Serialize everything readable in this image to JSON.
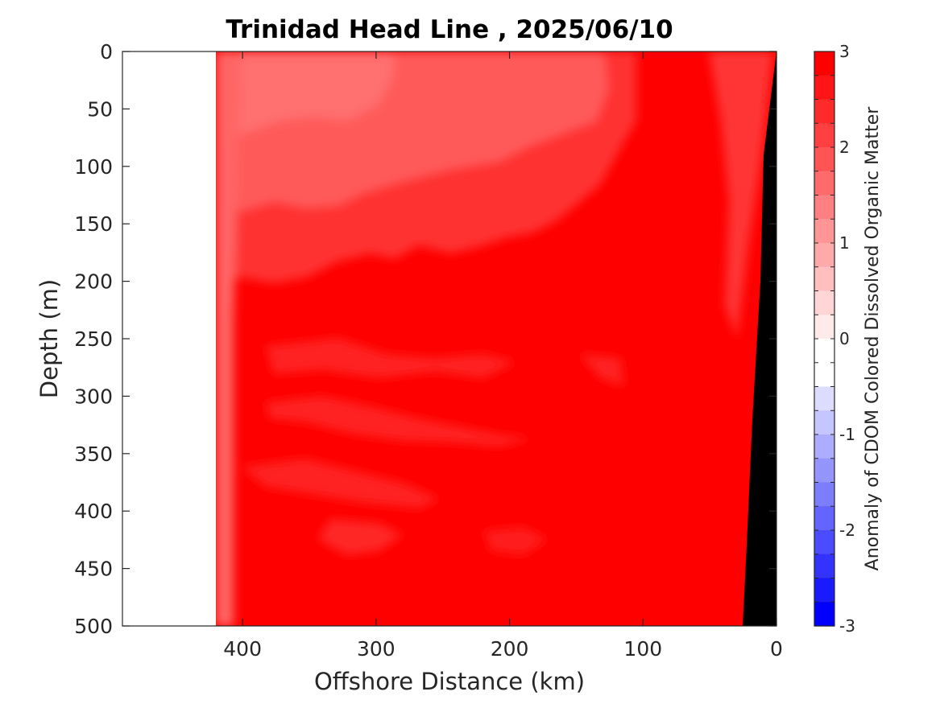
{
  "chart_data": {
    "type": "heatmap",
    "title": "Trinidad Head Line , 2025/06/10",
    "xlabel": "Offshore Distance (km)",
    "ylabel": "Depth (m)",
    "xlim": [
      490,
      0
    ],
    "ylim": [
      0,
      500
    ],
    "x_reversed": true,
    "y_reversed": true,
    "x_ticks": [
      400,
      300,
      200,
      100,
      0
    ],
    "y_ticks": [
      0,
      50,
      100,
      150,
      200,
      250,
      300,
      350,
      400,
      450,
      500
    ],
    "grid": false,
    "data_extent_km": [
      420,
      0
    ],
    "bathymetry_color": "#000000",
    "bathymetry_depth_by_distance_km": [
      {
        "x": 0,
        "depth": 0
      },
      {
        "x": 10,
        "depth": 90
      },
      {
        "x": 13,
        "depth": 200
      },
      {
        "x": 20,
        "depth": 320
      },
      {
        "x": 25,
        "depth": 430
      },
      {
        "x": 26,
        "depth": 500
      }
    ],
    "field_description": "CDOM anomaly mostly 2.5 to 3 (bright red) at depth and nearshore; 1.5 to 2.2 (lighter red) in upper 150 m offshore",
    "colorbar": {
      "label": "Anomaly of CDOM Colored Dissolved Organic Matter",
      "min": -3,
      "max": 3,
      "ticks": [
        3,
        2,
        1,
        0,
        -1,
        -2,
        -3
      ],
      "levels": 24,
      "colors_top_to_bottom": [
        "#ff0000",
        "#ff1515",
        "#ff2b2b",
        "#ff4040",
        "#ff5555",
        "#ff6a6a",
        "#ff8080",
        "#ff9595",
        "#ffaaaa",
        "#ffbfbf",
        "#ffd5d5",
        "#ffeaea",
        "#ffffff",
        "#ffffff",
        "#dcdcff",
        "#c5c5ff",
        "#adadff",
        "#9595ff",
        "#7d7dff",
        "#6464ff",
        "#4b4bff",
        "#3333ff",
        "#1a1aff",
        "#0000ff"
      ]
    }
  }
}
